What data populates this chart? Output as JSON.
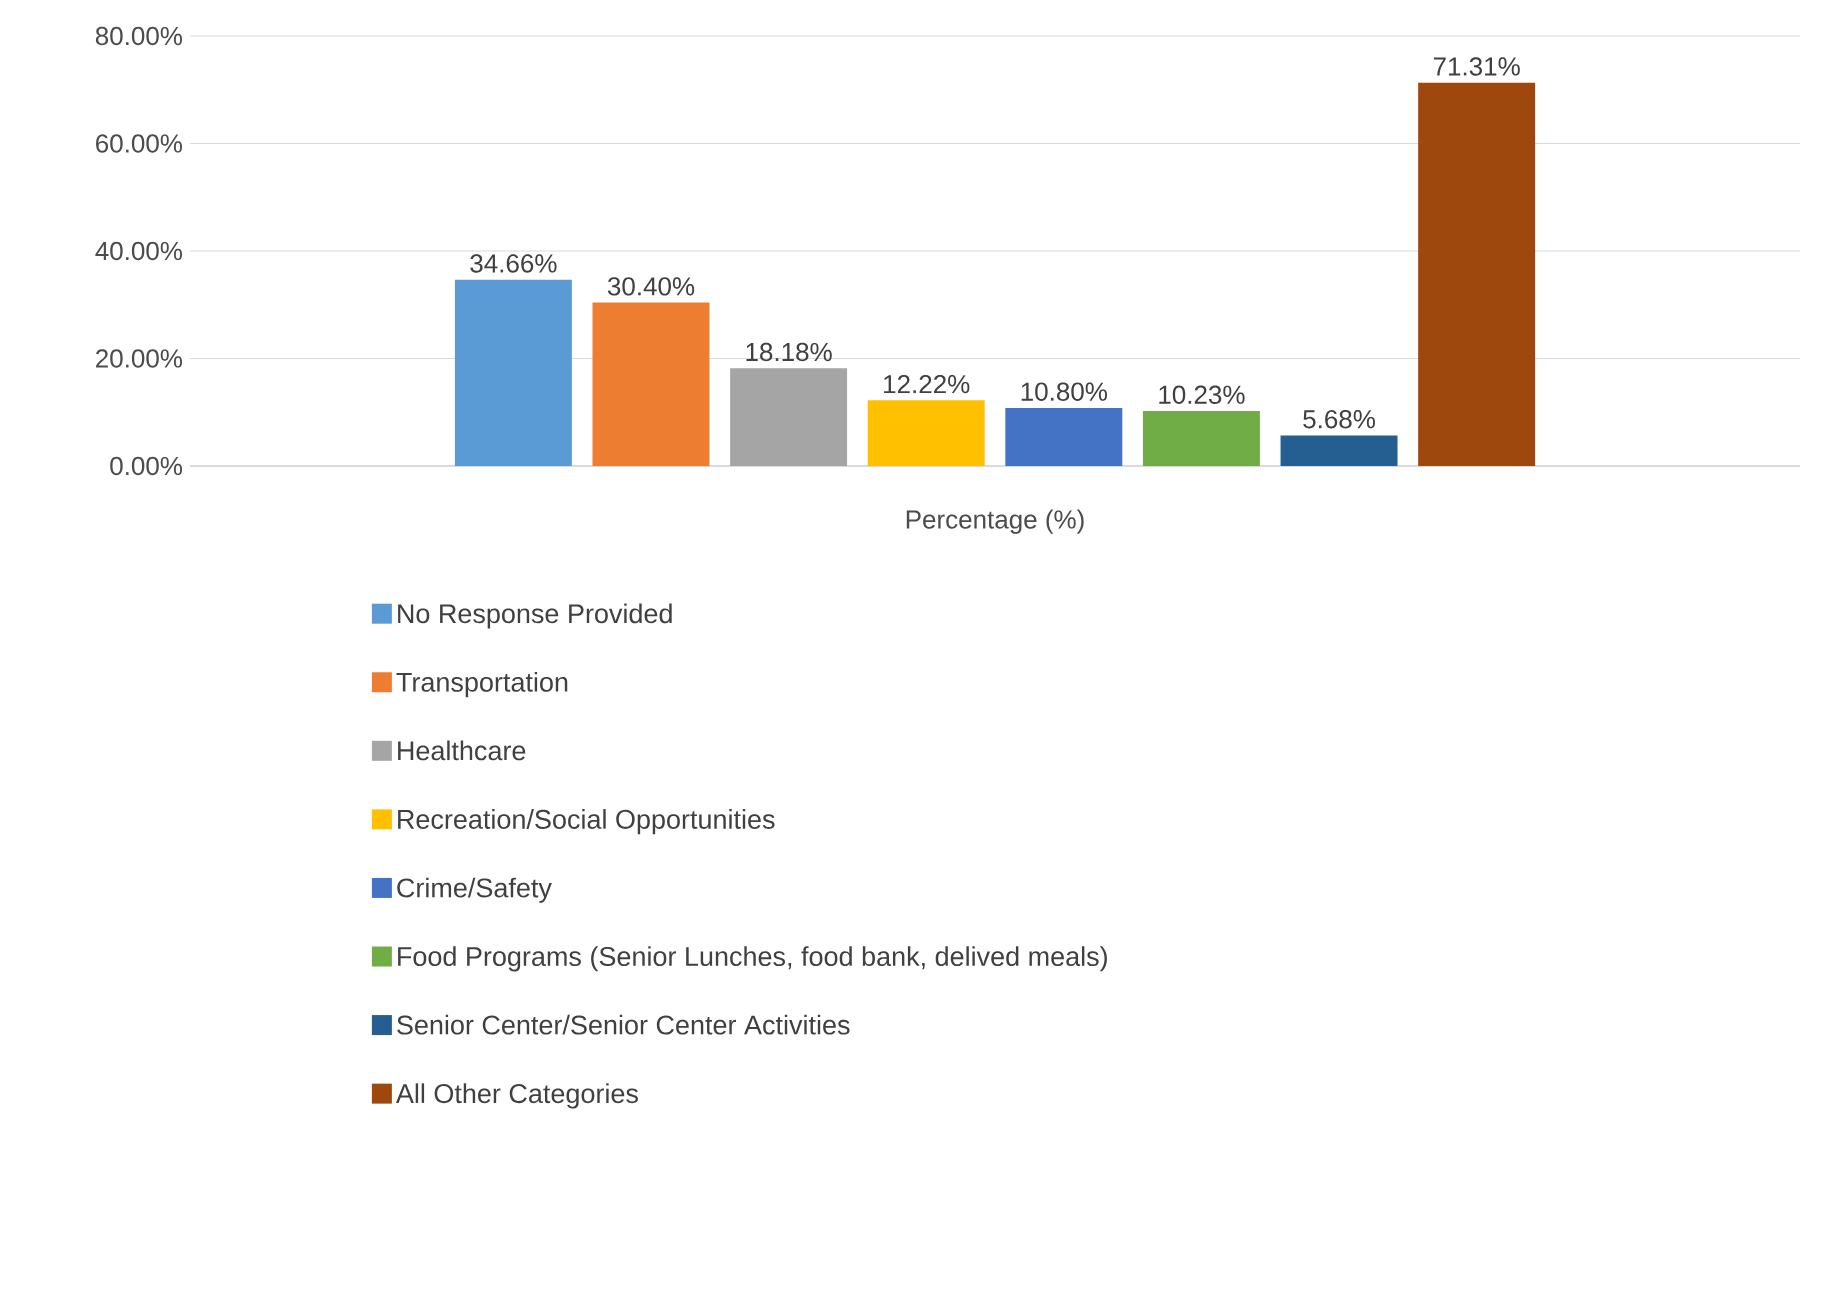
{
  "chart_data": {
    "type": "bar",
    "categories": [
      "Percentage (%)"
    ],
    "series": [
      {
        "name": "No Response Provided",
        "color": "#5b9bd5",
        "values": [
          34.66
        ],
        "value_labels": [
          "34.66%"
        ]
      },
      {
        "name": "Transportation",
        "color": "#ed7d31",
        "values": [
          30.4
        ],
        "value_labels": [
          "30.40%"
        ]
      },
      {
        "name": "Healthcare",
        "color": "#a5a5a5",
        "values": [
          18.18
        ],
        "value_labels": [
          "18.18%"
        ]
      },
      {
        "name": "Recreation/Social Opportunities",
        "color": "#ffc000",
        "values": [
          12.22
        ],
        "value_labels": [
          "12.22%"
        ]
      },
      {
        "name": "Crime/Safety",
        "color": "#4472c4",
        "values": [
          10.8
        ],
        "value_labels": [
          "10.80%"
        ]
      },
      {
        "name": "Food Programs (Senior Lunches, food bank, delived meals)",
        "color": "#70ad47",
        "values": [
          10.23
        ],
        "value_labels": [
          "10.23%"
        ]
      },
      {
        "name": "Senior Center/Senior Center Activities",
        "color": "#255e91",
        "values": [
          5.68
        ],
        "value_labels": [
          "5.68%"
        ]
      },
      {
        "name": "All Other Categories",
        "color": "#9e480e",
        "values": [
          71.31
        ],
        "value_labels": [
          "71.31%"
        ]
      }
    ],
    "ylim": [
      0,
      80
    ],
    "yticks": [
      {
        "value": 0,
        "label": "0.00%"
      },
      {
        "value": 20,
        "label": "20.00%"
      },
      {
        "value": 40,
        "label": "40.00%"
      },
      {
        "value": 60,
        "label": "60.00%"
      },
      {
        "value": 80,
        "label": "80.00%"
      }
    ],
    "grid": "y",
    "legend": "bottom"
  }
}
